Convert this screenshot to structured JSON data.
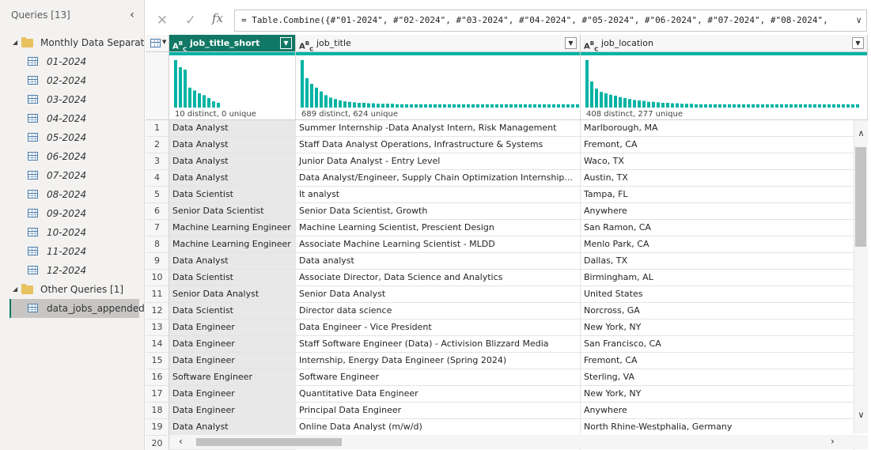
{
  "queries_pane": {
    "title": "Queries [13]",
    "groups": [
      {
        "label": "Monthly Data Separat...",
        "items": [
          "01-2024",
          "02-2024",
          "03-2024",
          "04-2024",
          "05-2024",
          "06-2024",
          "07-2024",
          "08-2024",
          "09-2024",
          "10-2024",
          "11-2024",
          "12-2024"
        ]
      },
      {
        "label": "Other Queries [1]",
        "items": [
          "data_jobs_appended"
        ]
      }
    ],
    "selected_item": "data_jobs_appended"
  },
  "formula_bar": {
    "formula": "= Table.Combine({#\"01-2024\", #\"02-2024\", #\"03-2024\", #\"04-2024\", #\"05-2024\", #\"06-2024\", #\"07-2024\", #\"08-2024\","
  },
  "columns": [
    {
      "name": "job_title_short",
      "type_icon": "ABC text",
      "selected": true,
      "stats": "10 distinct, 0 unique"
    },
    {
      "name": "job_title",
      "type_icon": "ABC text",
      "selected": false,
      "stats": "689 distinct, 624 unique"
    },
    {
      "name": "job_location",
      "type_icon": "ABC text",
      "selected": false,
      "stats": "408 distinct, 277 unique"
    }
  ],
  "accent_color": "#117865",
  "quality_color": "#00b3a4",
  "rows": [
    {
      "n": "1",
      "c1": "Data Analyst",
      "c2": "Summer Internship -Data Analyst Intern, Risk Management",
      "c3": "Marlborough, MA"
    },
    {
      "n": "2",
      "c1": "Data Analyst",
      "c2": "Staff Data Analyst Operations, Infrastructure & Systems",
      "c3": "Fremont, CA"
    },
    {
      "n": "3",
      "c1": "Data Analyst",
      "c2": "Junior Data Analyst - Entry Level",
      "c3": "Waco, TX"
    },
    {
      "n": "4",
      "c1": "Data Analyst",
      "c2": "Data Analyst/Engineer, Supply Chain Optimization Internship...",
      "c3": "Austin, TX"
    },
    {
      "n": "5",
      "c1": "Data Scientist",
      "c2": "It analyst",
      "c3": "Tampa, FL"
    },
    {
      "n": "6",
      "c1": "Senior Data Scientist",
      "c2": "Senior Data Scientist, Growth",
      "c3": "Anywhere"
    },
    {
      "n": "7",
      "c1": "Machine Learning Engineer",
      "c2": "Machine Learning Scientist, Prescient Design",
      "c3": "San Ramon, CA"
    },
    {
      "n": "8",
      "c1": "Machine Learning Engineer",
      "c2": "Associate Machine Learning Scientist - MLDD",
      "c3": "Menlo Park, CA"
    },
    {
      "n": "9",
      "c1": "Data Analyst",
      "c2": "Data analyst",
      "c3": "Dallas, TX"
    },
    {
      "n": "10",
      "c1": "Data Scientist",
      "c2": "Associate Director, Data Science and Analytics",
      "c3": "Birmingham, AL"
    },
    {
      "n": "11",
      "c1": "Senior Data Analyst",
      "c2": "Senior Data Analyst",
      "c3": "United States"
    },
    {
      "n": "12",
      "c1": "Data Scientist",
      "c2": "Director data science",
      "c3": "Norcross, GA"
    },
    {
      "n": "13",
      "c1": "Data Engineer",
      "c2": "Data Engineer - Vice President",
      "c3": "New York, NY"
    },
    {
      "n": "14",
      "c1": "Data Engineer",
      "c2": "Staff Software Engineer (Data)  - Activision Blizzard Media",
      "c3": "San Francisco, CA"
    },
    {
      "n": "15",
      "c1": "Data Engineer",
      "c2": "Internship, Energy Data Engineer (Spring 2024)",
      "c3": "Fremont, CA"
    },
    {
      "n": "16",
      "c1": "Software Engineer",
      "c2": "Software Engineer",
      "c3": "Sterling, VA"
    },
    {
      "n": "17",
      "c1": "Data Engineer",
      "c2": "Quantitative Data Engineer",
      "c3": "New York, NY"
    },
    {
      "n": "18",
      "c1": "Data Engineer",
      "c2": "Principal Data Engineer",
      "c3": "Anywhere"
    },
    {
      "n": "19",
      "c1": "Data Analyst",
      "c2": "Online Data Analyst (m/w/d)",
      "c3": "North Rhine-Westphalia, Germany"
    },
    {
      "n": "20",
      "c1": "",
      "c2": "",
      "c3": ""
    }
  ],
  "profile_histograms": [
    [
      1.0,
      0.85,
      0.8,
      0.42,
      0.36,
      0.3,
      0.26,
      0.2,
      0.13,
      0.1
    ],
    [
      1.0,
      0.62,
      0.5,
      0.42,
      0.34,
      0.26,
      0.21,
      0.18,
      0.15,
      0.13,
      0.12,
      0.11,
      0.1,
      0.1,
      0.09,
      0.09,
      0.08,
      0.08,
      0.08,
      0.08,
      0.07,
      0.07,
      0.07,
      0.07,
      0.07,
      0.07,
      0.07,
      0.07,
      0.07,
      0.07,
      0.07,
      0.07,
      0.07,
      0.07,
      0.07,
      0.07,
      0.07,
      0.07,
      0.07,
      0.07,
      0.07,
      0.07,
      0.07,
      0.07,
      0.07,
      0.07,
      0.07,
      0.07,
      0.07,
      0.07,
      0.07,
      0.07,
      0.07,
      0.07,
      0.07,
      0.07,
      0.07,
      0.07,
      0.07,
      0.07
    ],
    [
      1.0,
      0.55,
      0.4,
      0.33,
      0.3,
      0.27,
      0.25,
      0.22,
      0.2,
      0.18,
      0.16,
      0.15,
      0.14,
      0.12,
      0.12,
      0.11,
      0.1,
      0.1,
      0.09,
      0.09,
      0.08,
      0.08,
      0.08,
      0.07,
      0.07,
      0.07,
      0.07,
      0.07,
      0.07,
      0.07,
      0.07,
      0.07,
      0.07,
      0.07,
      0.07,
      0.07,
      0.07,
      0.07,
      0.07,
      0.07,
      0.07,
      0.07,
      0.07,
      0.07,
      0.07,
      0.07,
      0.07,
      0.07,
      0.07,
      0.07,
      0.07,
      0.07,
      0.07,
      0.07,
      0.07,
      0.07,
      0.07,
      0.07
    ]
  ]
}
